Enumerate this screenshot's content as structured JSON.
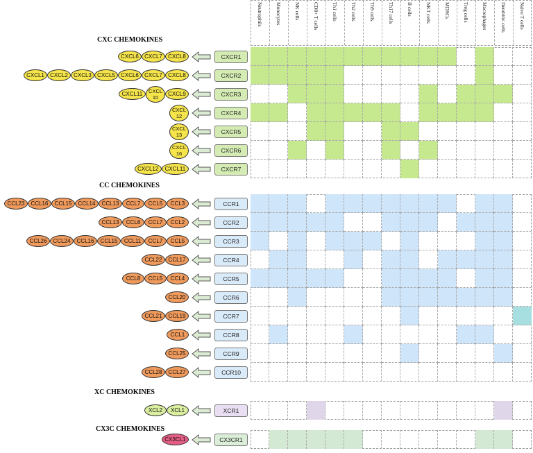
{
  "columns": [
    "Neutrophils",
    "Monocytes",
    "NK cells",
    "CD8+ T cells",
    "Th1 cells",
    "Th2 cells",
    "Th9 cells",
    "Th17 cells",
    "B cells",
    "NKT cells",
    "MDSCs",
    "Treg cells",
    "Macrophages",
    "Dendritic cells",
    "Naive T cells"
  ],
  "colors": {
    "cxc_fill": "#c6e990",
    "cxc_receptor": "#d4ecb3",
    "cc_fill": "#cfe5fa",
    "cc_receptor": "#d9eaf9",
    "naive_fill": "#a7dfe0",
    "xc_fill": "#e0d6ea",
    "xc_receptor": "#e9def2",
    "cx3c_fill": "#d4e9d4",
    "cx3c_receptor": "#daeed8",
    "ligand_cxc": "#f5e44a",
    "ligand_cc": "#f09a5c",
    "ligand_xc": "#d9ee9e",
    "ligand_cx3c": "#e45d84",
    "arrow_fill": "#dcecd4"
  },
  "sections": [
    {
      "title": "CXC CHEMOKINES",
      "ligand_style": "cxc",
      "receptor_style": "cxc",
      "rows": [
        {
          "receptor": "CXCR1",
          "ligands": [
            "CXCL6",
            "CXCL7",
            "CXCL8"
          ],
          "cells": [
            1,
            1,
            1,
            1,
            1,
            1,
            1,
            1,
            1,
            1,
            1,
            0,
            1,
            0,
            0
          ]
        },
        {
          "receptor": "CXCR2",
          "ligands": [
            "CXCL1",
            "CXCL2",
            "CXCL3",
            "CXCL5",
            "CXCL6",
            "CXCL7",
            "CXCL8"
          ],
          "cells": [
            1,
            1,
            1,
            1,
            1,
            0,
            0,
            0,
            0,
            0,
            0,
            0,
            1,
            0,
            0
          ]
        },
        {
          "receptor": "CXCR3",
          "ligands": [
            "CXCL11",
            "CXCL 10",
            "CXCL9"
          ],
          "cells": [
            0,
            0,
            1,
            1,
            1,
            0,
            0,
            0,
            0,
            1,
            0,
            1,
            1,
            1,
            0
          ]
        },
        {
          "receptor": "CXCR4",
          "ligands": [
            "CXCL 12"
          ],
          "cells": [
            1,
            1,
            0,
            1,
            1,
            1,
            1,
            1,
            0,
            1,
            1,
            1,
            1,
            0,
            0
          ]
        },
        {
          "receptor": "CXCR5",
          "ligands": [
            "CXCL 13"
          ],
          "cells": [
            0,
            0,
            0,
            1,
            1,
            0,
            0,
            1,
            1,
            0,
            0,
            0,
            0,
            0,
            0
          ]
        },
        {
          "receptor": "CXCR6",
          "ligands": [
            "CXCL 16"
          ],
          "cells": [
            0,
            0,
            1,
            0,
            1,
            0,
            0,
            1,
            0,
            1,
            0,
            0,
            0,
            0,
            0
          ]
        },
        {
          "receptor": "CXCR7",
          "ligands": [
            "CXCL12",
            "CXCL11"
          ],
          "cells": [
            0,
            0,
            0,
            0,
            0,
            0,
            0,
            0,
            1,
            0,
            0,
            0,
            0,
            0,
            0
          ]
        }
      ]
    },
    {
      "title": "CC CHEMOKINES",
      "ligand_style": "cc",
      "receptor_style": "cc",
      "rows": [
        {
          "receptor": "CCR1",
          "ligands": [
            "CCL23",
            "CCL16",
            "CCL15",
            "CCL14",
            "CCL13",
            "CCL7",
            "CCL5",
            "CCL3"
          ],
          "cells": [
            1,
            1,
            1,
            0,
            1,
            1,
            1,
            1,
            1,
            1,
            1,
            0,
            1,
            1,
            0
          ]
        },
        {
          "receptor": "CCR2",
          "ligands": [
            "CCL13",
            "CCL8",
            "CCL7",
            "CCL2"
          ],
          "cells": [
            1,
            1,
            1,
            1,
            1,
            0,
            0,
            1,
            1,
            1,
            0,
            1,
            1,
            1,
            0
          ]
        },
        {
          "receptor": "CCR3",
          "ligands": [
            "CCL26",
            "CCL24",
            "CCL16",
            "CCL15",
            "CCL11",
            "CCL7",
            "CCL5"
          ],
          "cells": [
            1,
            0,
            1,
            0,
            1,
            1,
            1,
            0,
            1,
            0,
            0,
            0,
            1,
            1,
            0
          ]
        },
        {
          "receptor": "CCR4",
          "ligands": [
            "CCL22",
            "CCL17"
          ],
          "cells": [
            0,
            1,
            1,
            0,
            0,
            1,
            0,
            1,
            1,
            0,
            1,
            1,
            1,
            1,
            0
          ]
        },
        {
          "receptor": "CCR5",
          "ligands": [
            "CCL8",
            "CCL5",
            "CCL4"
          ],
          "cells": [
            1,
            1,
            1,
            1,
            1,
            0,
            0,
            1,
            1,
            1,
            1,
            0,
            1,
            1,
            0
          ]
        },
        {
          "receptor": "CCR6",
          "ligands": [
            "CCL20"
          ],
          "cells": [
            0,
            0,
            1,
            0,
            0,
            0,
            0,
            1,
            1,
            1,
            1,
            1,
            1,
            1,
            0
          ]
        },
        {
          "receptor": "CCR7",
          "ligands": [
            "CCL21",
            "CCL19"
          ],
          "cells": [
            0,
            0,
            0,
            0,
            0,
            0,
            0,
            0,
            1,
            0,
            0,
            0,
            0,
            0,
            2
          ]
        },
        {
          "receptor": "CCR8",
          "ligands": [
            "CCL1"
          ],
          "cells": [
            0,
            1,
            0,
            0,
            0,
            1,
            0,
            0,
            0,
            0,
            0,
            1,
            1,
            0,
            0
          ]
        },
        {
          "receptor": "CCR9",
          "ligands": [
            "CCL25"
          ],
          "cells": [
            0,
            0,
            0,
            0,
            0,
            0,
            0,
            0,
            1,
            0,
            0,
            0,
            0,
            1,
            0
          ]
        },
        {
          "receptor": "CCR10",
          "ligands": [
            "CCL28",
            "CCL27"
          ],
          "cells": [
            0,
            0,
            0,
            0,
            0,
            0,
            0,
            0,
            0,
            0,
            0,
            0,
            0,
            0,
            0
          ]
        }
      ]
    },
    {
      "title": "XC CHEMOKINES",
      "ligand_style": "xc",
      "receptor_style": "xc",
      "rows": [
        {
          "receptor": "XCR1",
          "ligands": [
            "XCL2",
            "XCL1"
          ],
          "cells": [
            0,
            0,
            0,
            1,
            0,
            0,
            0,
            0,
            0,
            0,
            0,
            0,
            0,
            1,
            0
          ]
        }
      ]
    },
    {
      "title": "CX3C CHEMOKINES",
      "ligand_style": "cx3c",
      "receptor_style": "cx3c",
      "rows": [
        {
          "receptor": "CX3CR1",
          "ligands": [
            "CX3CL1"
          ],
          "cells": [
            0,
            1,
            1,
            1,
            1,
            1,
            0,
            0,
            0,
            0,
            0,
            0,
            1,
            1,
            0
          ]
        }
      ]
    }
  ]
}
